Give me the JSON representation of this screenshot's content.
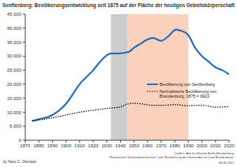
{
  "chart_data": {
    "type": "line",
    "title": "Senftenberg: Bevölkerungsentwicklung seit 1875 auf der Fläche der heutigen Gebietskörperschaft",
    "series": [
      {
        "name": "Bevölkerung von Senftenberg",
        "color": "#2a6ebb",
        "line_style": "solid",
        "x": [
          1875,
          1880,
          1890,
          1900,
          1910,
          1920,
          1925,
          1933,
          1939,
          1946,
          1950,
          1955,
          1960,
          1964,
          1970,
          1975,
          1981,
          1985,
          1989,
          1990,
          1995,
          2000,
          2005,
          2010,
          2015,
          2020
        ],
        "values": [
          6900,
          7500,
          9000,
          13000,
          20000,
          25000,
          28000,
          31000,
          31000,
          31500,
          33000,
          34500,
          36000,
          36500,
          35500,
          37000,
          39500,
          39000,
          38000,
          37500,
          33000,
          30000,
          28000,
          26000,
          25000,
          23500
        ]
      },
      {
        "name": "Normalisierte Bevölkerung von Brandenburg, 1875 = 6922",
        "color": "#000000",
        "line_style": "dotted",
        "x": [
          1875,
          1890,
          1900,
          1910,
          1925,
          1933,
          1939,
          1946,
          1950,
          1964,
          1971,
          1981,
          1990,
          2000,
          2010,
          2020
        ],
        "values": [
          6922,
          8000,
          9000,
          10000,
          11000,
          11500,
          11800,
          13000,
          13200,
          12500,
          12500,
          12700,
          12300,
          12500,
          11800,
          12000
        ]
      }
    ],
    "shaded_periods": [
      {
        "from": 1933,
        "to": 1945,
        "color": "#bfbfbf"
      },
      {
        "from": 1945,
        "to": 1990,
        "color": "#f7c6ad"
      }
    ],
    "xlim": [
      1870,
      2020
    ],
    "xticks": [
      1870,
      1880,
      1890,
      1900,
      1910,
      1920,
      1930,
      1940,
      1950,
      1960,
      1970,
      1980,
      1990,
      2000,
      2010,
      2020
    ],
    "ylim": [
      0,
      45000
    ],
    "yticks": [
      0,
      {
        "value": 5000,
        "label": "5.000"
      },
      {
        "value": 10000,
        "label": "10.000"
      },
      {
        "value": 15000,
        "label": "15.000"
      },
      {
        "value": 20000,
        "label": "20.000"
      },
      {
        "value": 25000,
        "label": "25.000"
      },
      {
        "value": 30000,
        "label": "30.000"
      },
      {
        "value": 35000,
        "label": "35.000"
      },
      {
        "value": 40000,
        "label": "40.000"
      },
      {
        "value": 45000,
        "label": "45.000"
      }
    ],
    "grid": false,
    "author": "by Hans G. Oberlack",
    "sources": [
      "Quellen: Amt für Statistik Berlin-Brandenburg",
      "\"Historisches Gemeindeverzeichnis\" und \"Bevölkerung der Gemeinden im Land Brandenburg\""
    ],
    "date": "08.08.2021"
  }
}
